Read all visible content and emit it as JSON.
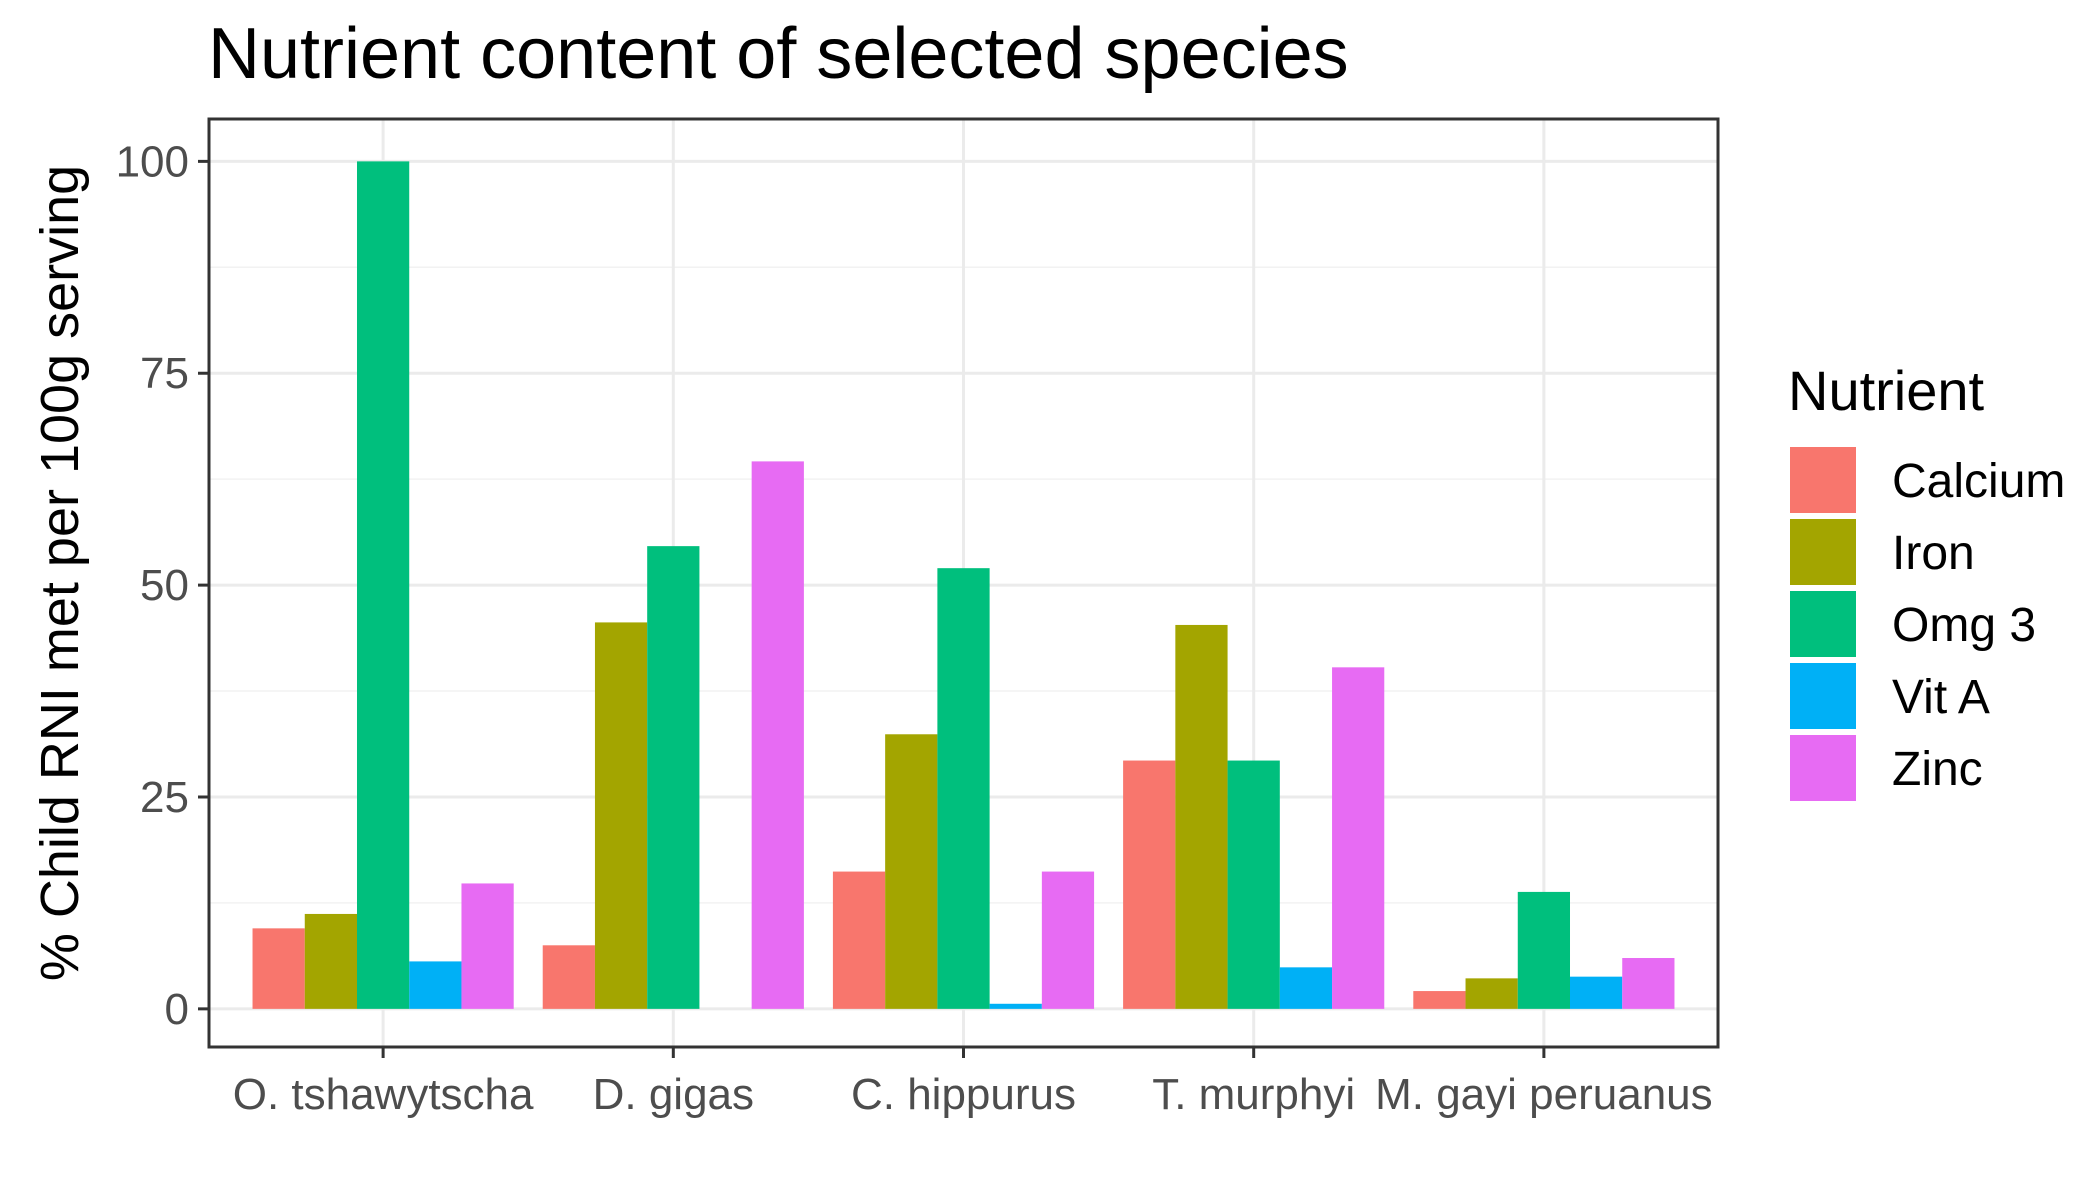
{
  "chart_data": {
    "type": "bar",
    "title": "Nutrient content of selected species",
    "xlabel": "",
    "ylabel": "% Child RNI met per 100g serving",
    "categories": [
      "O. tshawytscha",
      "D. gigas",
      "C. hippurus",
      "T. murphyi",
      "M. gayi peruanus"
    ],
    "series": [
      {
        "name": "Calcium",
        "color": "#F8766D",
        "values": [
          9.5,
          7.5,
          16.2,
          29.3,
          2.1
        ]
      },
      {
        "name": "Iron",
        "color": "#A3A500",
        "values": [
          11.2,
          45.6,
          32.4,
          45.3,
          3.6
        ]
      },
      {
        "name": "Omg 3",
        "color": "#00BF7D",
        "values": [
          100.0,
          54.6,
          52.0,
          29.3,
          13.8
        ]
      },
      {
        "name": "Vit A",
        "color": "#00B0F6",
        "values": [
          5.6,
          0,
          0.6,
          4.9,
          3.8
        ]
      },
      {
        "name": "Zinc",
        "color": "#E76BF3",
        "values": [
          14.8,
          64.6,
          16.2,
          40.3,
          6.0
        ]
      }
    ],
    "ylim": [
      -4.5,
      105
    ],
    "yticks": [
      0,
      25,
      50,
      75,
      100
    ],
    "legend_title": "Nutrient",
    "legend_position": "right",
    "grid": true
  }
}
